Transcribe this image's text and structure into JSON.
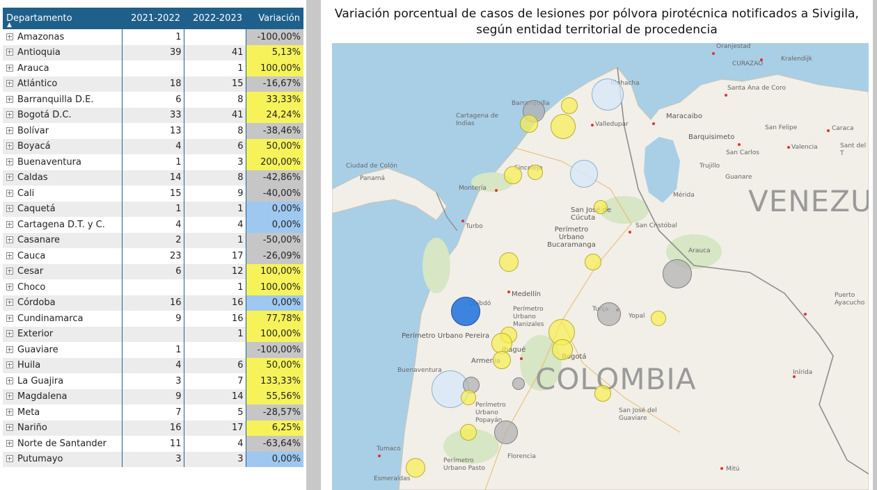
{
  "table": {
    "headers": {
      "departamento": "Departamento",
      "col1": "2021-2022",
      "col2": "2022-2023",
      "variacion": "Variación"
    },
    "rows": [
      {
        "dep": "Amazonas",
        "a": "1",
        "b": "",
        "v": "-100,00%",
        "t": "neg"
      },
      {
        "dep": "Antioquia",
        "a": "39",
        "b": "41",
        "v": "5,13%",
        "t": "pos"
      },
      {
        "dep": "Arauca",
        "a": "",
        "b": "1",
        "v": "100,00%",
        "t": "pos"
      },
      {
        "dep": "Atlántico",
        "a": "18",
        "b": "15",
        "v": "-16,67%",
        "t": "neg"
      },
      {
        "dep": "Barranquilla D.E.",
        "a": "6",
        "b": "8",
        "v": "33,33%",
        "t": "pos"
      },
      {
        "dep": "Bogotá D.C.",
        "a": "33",
        "b": "41",
        "v": "24,24%",
        "t": "pos"
      },
      {
        "dep": "Bolívar",
        "a": "13",
        "b": "8",
        "v": "-38,46%",
        "t": "neg"
      },
      {
        "dep": "Boyacá",
        "a": "4",
        "b": "6",
        "v": "50,00%",
        "t": "pos"
      },
      {
        "dep": "Buenaventura",
        "a": "1",
        "b": "3",
        "v": "200,00%",
        "t": "pos"
      },
      {
        "dep": "Caldas",
        "a": "14",
        "b": "8",
        "v": "-42,86%",
        "t": "neg"
      },
      {
        "dep": "Cali",
        "a": "15",
        "b": "9",
        "v": "-40,00%",
        "t": "neg"
      },
      {
        "dep": "Caquetá",
        "a": "1",
        "b": "1",
        "v": "0,00%",
        "t": "zero"
      },
      {
        "dep": "Cartagena D.T. y C.",
        "a": "4",
        "b": "4",
        "v": "0,00%",
        "t": "zero"
      },
      {
        "dep": "Casanare",
        "a": "2",
        "b": "1",
        "v": "-50,00%",
        "t": "neg"
      },
      {
        "dep": "Cauca",
        "a": "23",
        "b": "17",
        "v": "-26,09%",
        "t": "neg"
      },
      {
        "dep": "Cesar",
        "a": "6",
        "b": "12",
        "v": "100,00%",
        "t": "pos"
      },
      {
        "dep": "Choco",
        "a": "",
        "b": "1",
        "v": "100,00%",
        "t": "pos"
      },
      {
        "dep": "Córdoba",
        "a": "16",
        "b": "16",
        "v": "0,00%",
        "t": "zero"
      },
      {
        "dep": "Cundinamarca",
        "a": "9",
        "b": "16",
        "v": "77,78%",
        "t": "pos"
      },
      {
        "dep": "Exterior",
        "a": "",
        "b": "1",
        "v": "100,00%",
        "t": "pos"
      },
      {
        "dep": "Guaviare",
        "a": "1",
        "b": "",
        "v": "-100,00%",
        "t": "neg"
      },
      {
        "dep": "Huila",
        "a": "4",
        "b": "6",
        "v": "50,00%",
        "t": "pos"
      },
      {
        "dep": "La Guajira",
        "a": "3",
        "b": "7",
        "v": "133,33%",
        "t": "pos"
      },
      {
        "dep": "Magdalena",
        "a": "9",
        "b": "14",
        "v": "55,56%",
        "t": "pos"
      },
      {
        "dep": "Meta",
        "a": "7",
        "b": "5",
        "v": "-28,57%",
        "t": "neg"
      },
      {
        "dep": "Nariño",
        "a": "16",
        "b": "17",
        "v": "6,25%",
        "t": "pos"
      },
      {
        "dep": "Norte de Santander",
        "a": "11",
        "b": "4",
        "v": "-63,64%",
        "t": "neg"
      },
      {
        "dep": "Putumayo",
        "a": "3",
        "b": "3",
        "v": "0,00%",
        "t": "zero"
      }
    ]
  },
  "map": {
    "title": "Variación porcentual de casos de lesiones por pólvora pirotécnica notificados a Sivigila, según entidad territorial de procedencia",
    "country_label": "COLOMBIA",
    "neighbor_label": "VENEZU",
    "place_labels": {
      "oranjestad": "Oranjestad",
      "curazao": "CURAZAO",
      "kralendijk": "Kralendijk",
      "santa_ana": "Santa Ana de Coro",
      "riohacha": "Riohacha",
      "barranquilla": "Barranquilla",
      "cartagena": "Cartagena de Indias",
      "maracaibo": "Maracaibo",
      "valledupar": "Valledupar",
      "barquisimeto": "Barquisimeto",
      "san_felipe": "San Felipe",
      "caracas": "Caraca",
      "valencia": "Valencia",
      "san_carlos": "San Carlos",
      "sant": "Sant del T",
      "ciudad_colon": "Ciudad de Colón",
      "panama": "Panamá",
      "sincelejo": "Sincelejo",
      "trujillo": "Trujillo",
      "guanare": "Guanare",
      "monteria": "Montería",
      "merida": "Mérida",
      "cucuta": "San José de Cúcuta",
      "turbo": "Turbo",
      "perimetro_bucaramanga": "Perímetro Urbano Bucaramanga",
      "san_cristobal": "San Cristóbal",
      "arauca": "Arauca",
      "medellin": "Medellín",
      "quibdo": "Quibdó",
      "manizales": "Perímetro Urbano Manizales",
      "tunja": "Tunja",
      "yopal": "Yopal",
      "ayacucho": "Puerto Ayacucho",
      "pereira": "Perímetro Urbano Pereira",
      "ibague": "Ibagué",
      "armenia": "Armenia",
      "bogota": "Bogotá",
      "buenaventura": "Buenaventura",
      "inirida": "Inírida",
      "popayan": "Perímetro Urbano Popayán",
      "san_jose_guaviare": "San José del Guaviare",
      "tumaco": "Tumaco",
      "florencia": "Florencia",
      "pasto": "Perímetro Urbano Pasto",
      "esmeraldas": "Esmeraldas",
      "mitu": "Mitú"
    }
  }
}
